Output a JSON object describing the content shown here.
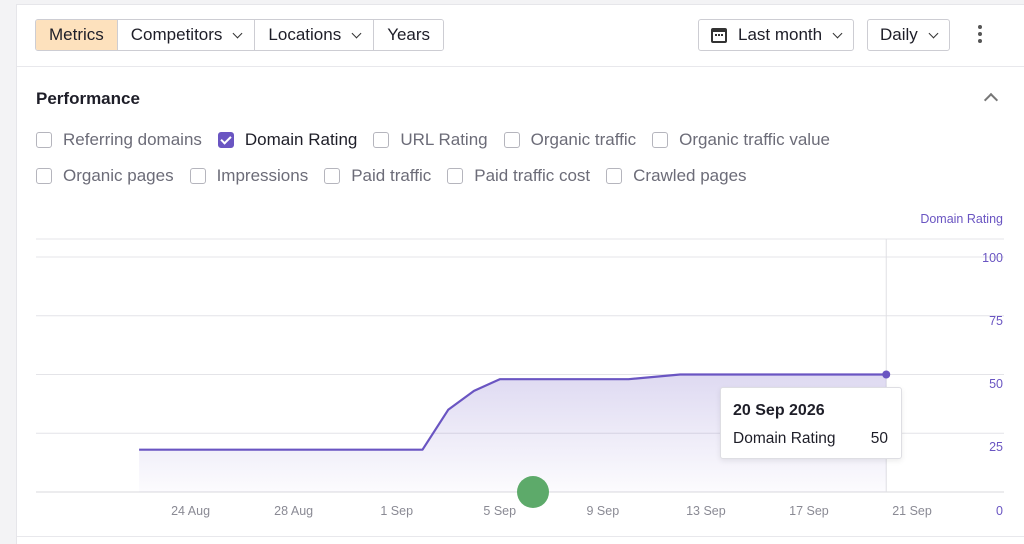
{
  "toolbar": {
    "tabs": [
      {
        "label": "Metrics",
        "active": true
      },
      {
        "label": "Competitors",
        "dropdown": true
      },
      {
        "label": "Locations",
        "dropdown": true
      },
      {
        "label": "Years"
      }
    ],
    "date_range": "Last month",
    "granularity": "Daily"
  },
  "panel": {
    "title": "Performance"
  },
  "metrics": {
    "row1": [
      {
        "label": "Referring domains",
        "checked": false
      },
      {
        "label": "Domain Rating",
        "checked": true
      },
      {
        "label": "URL Rating",
        "checked": false
      },
      {
        "label": "Organic traffic",
        "checked": false
      },
      {
        "label": "Organic traffic value",
        "checked": false
      }
    ],
    "row2": [
      {
        "label": "Organic pages",
        "checked": false
      },
      {
        "label": "Impressions",
        "checked": false
      },
      {
        "label": "Paid traffic",
        "checked": false
      },
      {
        "label": "Paid traffic cost",
        "checked": false
      },
      {
        "label": "Crawled pages",
        "checked": false
      }
    ]
  },
  "colors": {
    "accent": "#6a55c2",
    "active_tab": "#fde1bd",
    "marker_green": "#5daa6a"
  },
  "chart_data": {
    "type": "area",
    "ylabel": "Domain Rating",
    "ylim": [
      0,
      100
    ],
    "yticks": [
      "100",
      "75",
      "50",
      "25",
      "0"
    ],
    "xticks": [
      "24 Aug",
      "28 Aug",
      "1 Sep",
      "5 Sep",
      "9 Sep",
      "13 Sep",
      "17 Sep",
      "21 Sep"
    ],
    "series": [
      {
        "name": "Domain Rating",
        "points": [
          {
            "x": "2026-08-22",
            "y": 18
          },
          {
            "x": "2026-09-02",
            "y": 18
          },
          {
            "x": "2026-09-03",
            "y": 35
          },
          {
            "x": "2026-09-04",
            "y": 43
          },
          {
            "x": "2026-09-05",
            "y": 48
          },
          {
            "x": "2026-09-10",
            "y": 48
          },
          {
            "x": "2026-09-12",
            "y": 50
          },
          {
            "x": "2026-09-20",
            "y": 50
          }
        ]
      }
    ],
    "grid": true,
    "legend": "none"
  },
  "tooltip": {
    "date": "20 Sep 2026",
    "label": "Domain Rating",
    "value": "50"
  }
}
